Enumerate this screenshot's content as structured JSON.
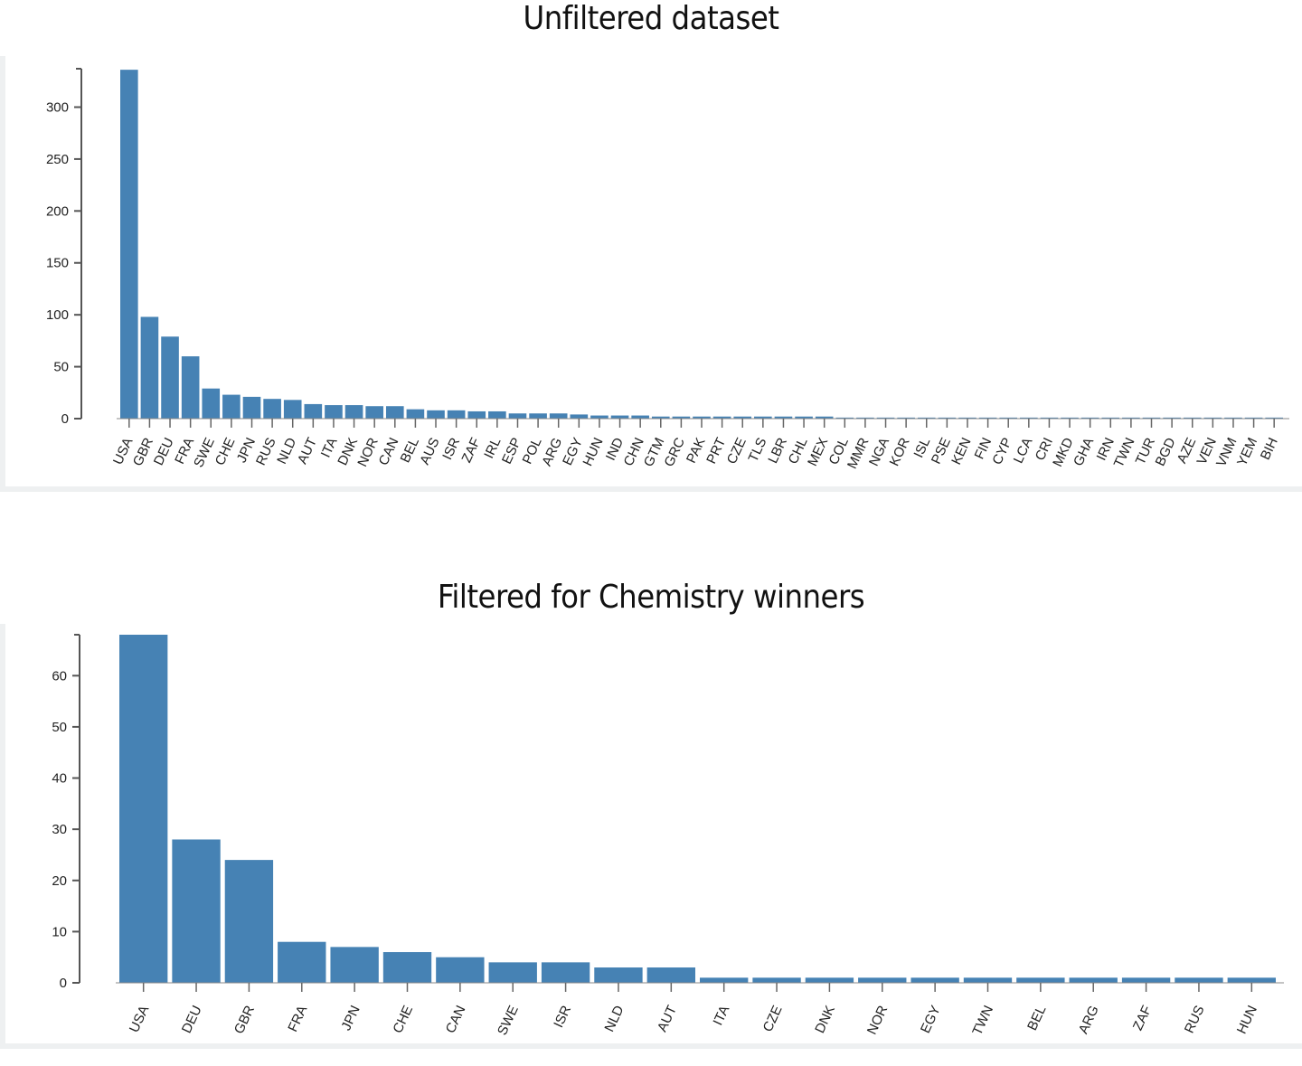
{
  "chart_data": [
    {
      "type": "bar",
      "title": "Unfiltered dataset",
      "xlabel": "",
      "ylabel": "",
      "ylim": [
        0,
        337
      ],
      "yticks": [
        0,
        50,
        100,
        150,
        200,
        250,
        300
      ],
      "grid": false,
      "bar_color": "#4682b4",
      "categories": [
        "USA",
        "GBR",
        "DEU",
        "FRA",
        "SWE",
        "CHE",
        "JPN",
        "RUS",
        "NLD",
        "AUT",
        "ITA",
        "DNK",
        "NOR",
        "CAN",
        "BEL",
        "AUS",
        "ISR",
        "ZAF",
        "IRL",
        "ESP",
        "POL",
        "ARG",
        "EGY",
        "HUN",
        "IND",
        "CHN",
        "GTM",
        "GRC",
        "PAK",
        "PRT",
        "CZE",
        "TLS",
        "LBR",
        "CHL",
        "MEX",
        "COL",
        "MMR",
        "NGA",
        "KOR",
        "ISL",
        "PSE",
        "KEN",
        "FIN",
        "CYP",
        "LCA",
        "CRI",
        "MKD",
        "GHA",
        "IRN",
        "TWN",
        "TUR",
        "BGD",
        "AZE",
        "VEN",
        "VNM",
        "YEM",
        "BIH"
      ],
      "values": [
        336,
        98,
        79,
        60,
        29,
        23,
        21,
        19,
        18,
        14,
        13,
        13,
        12,
        12,
        9,
        8,
        8,
        7,
        7,
        5,
        5,
        5,
        4,
        3,
        3,
        3,
        2,
        2,
        2,
        2,
        2,
        2,
        2,
        2,
        2,
        1,
        1,
        1,
        1,
        1,
        1,
        1,
        1,
        1,
        1,
        1,
        1,
        1,
        1,
        1,
        1,
        1,
        1,
        1,
        1,
        1,
        1
      ]
    },
    {
      "type": "bar",
      "title": "Filtered for Chemistry winners",
      "xlabel": "",
      "ylabel": "",
      "ylim": [
        0,
        68
      ],
      "yticks": [
        0,
        10,
        20,
        30,
        40,
        50,
        60
      ],
      "grid": false,
      "bar_color": "#4682b4",
      "categories": [
        "USA",
        "DEU",
        "GBR",
        "FRA",
        "JPN",
        "CHE",
        "CAN",
        "SWE",
        "ISR",
        "NLD",
        "AUT",
        "ITA",
        "CZE",
        "DNK",
        "NOR",
        "EGY",
        "TWN",
        "BEL",
        "ARG",
        "ZAF",
        "RUS",
        "HUN"
      ],
      "values": [
        68,
        28,
        24,
        8,
        7,
        6,
        5,
        4,
        4,
        3,
        3,
        1,
        1,
        1,
        1,
        1,
        1,
        1,
        1,
        1,
        1,
        1
      ]
    }
  ]
}
